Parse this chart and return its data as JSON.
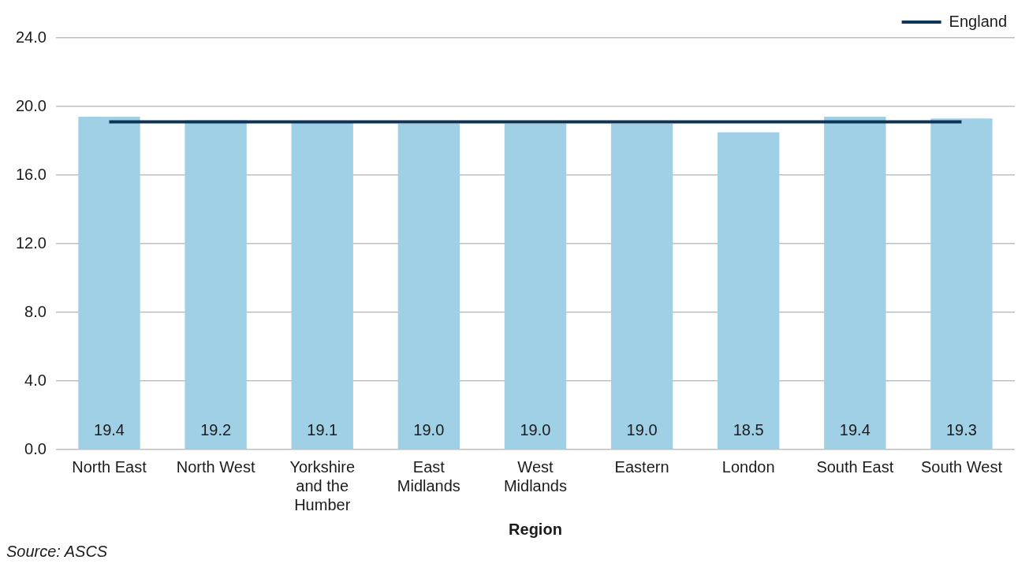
{
  "chart_data": {
    "type": "bar",
    "categories": [
      "North East",
      "North West",
      "Yorkshire and the Humber",
      "East Midlands",
      "West Midlands",
      "Eastern",
      "London",
      "South East",
      "South West"
    ],
    "series": [
      {
        "color": "#9fd0e6",
        "values": [
          19.4,
          19.2,
          19.1,
          19.0,
          19.0,
          19.0,
          18.5,
          19.4,
          19.3
        ],
        "value_labels": [
          "19.4",
          "19.2",
          "19.1",
          "19.0",
          "19.0",
          "19.0",
          "18.5",
          "19.4",
          "19.3"
        ]
      },
      {
        "type": "line",
        "name": "England",
        "color": "#0d3356",
        "values": [
          19.1,
          19.1,
          19.1,
          19.1,
          19.1,
          19.1,
          19.1,
          19.1,
          19.1
        ]
      }
    ],
    "xlabel": "Region",
    "ylim": [
      0,
      24
    ],
    "yticks": [
      {
        "value": 0,
        "label": "0.0"
      },
      {
        "value": 4,
        "label": "4.0"
      },
      {
        "value": 8,
        "label": "8.0"
      },
      {
        "value": 12,
        "label": "12.0"
      },
      {
        "value": 16,
        "label": "16.0"
      },
      {
        "value": 20,
        "label": "20.0"
      },
      {
        "value": 24,
        "label": "24.0"
      }
    ],
    "grid": "y",
    "legend": "top right",
    "marker": "none",
    "annotations": [
      "Source: ASCS"
    ]
  }
}
